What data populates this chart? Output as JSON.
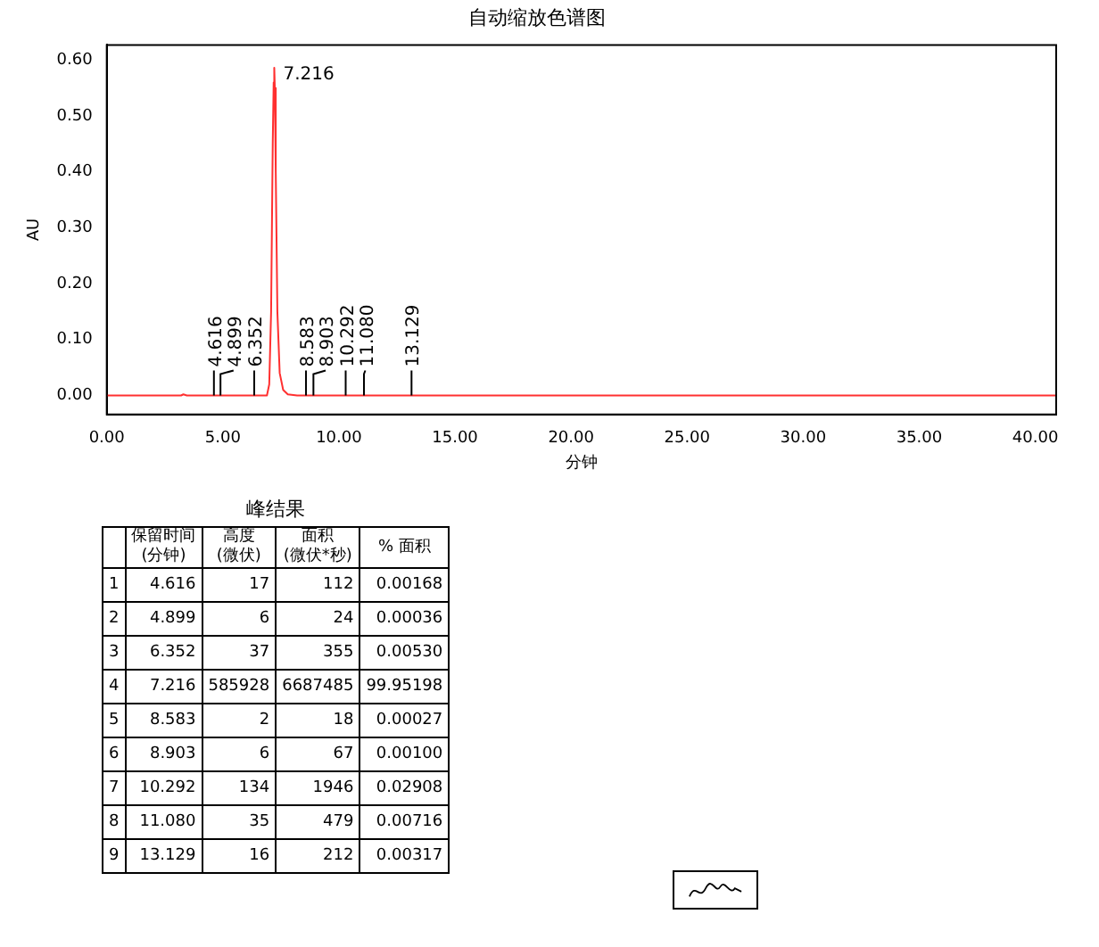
{
  "chart_data": {
    "type": "line",
    "title": "自动缩放色谱图",
    "xlabel": "分钟",
    "ylabel": "AU",
    "x": [
      0,
      3.2,
      3.3,
      3.45,
      6.9,
      7.0,
      7.08,
      7.15,
      7.19,
      7.216,
      7.24,
      7.28,
      7.35,
      7.45,
      7.6,
      7.8,
      8.2,
      40.9
    ],
    "series": [
      {
        "color": "#ff3030",
        "values": [
          0,
          0,
          0.002,
          0,
          0,
          0.02,
          0.15,
          0.45,
          0.56,
          0.586,
          0.55,
          0.4,
          0.15,
          0.04,
          0.01,
          0.002,
          0,
          0
        ]
      }
    ],
    "xlim": [
      0,
      40.9
    ],
    "ylim": [
      -0.034,
      0.627
    ],
    "xticks": [
      {
        "value": 0,
        "label": "0.00"
      },
      {
        "value": 5,
        "label": "5.00"
      },
      {
        "value": 10,
        "label": "10.00"
      },
      {
        "value": 15,
        "label": "15.00"
      },
      {
        "value": 20,
        "label": "20.00"
      },
      {
        "value": 25,
        "label": "25.00"
      },
      {
        "value": 30,
        "label": "30.00"
      },
      {
        "value": 35,
        "label": "35.00"
      },
      {
        "value": 40,
        "label": "40.00"
      }
    ],
    "yticks": [
      {
        "value": 0,
        "label": "0.00"
      },
      {
        "value": 0.1,
        "label": "0.10"
      },
      {
        "value": 0.2,
        "label": "0.20"
      },
      {
        "value": 0.3,
        "label": "0.30"
      },
      {
        "value": 0.4,
        "label": "0.40"
      },
      {
        "value": 0.5,
        "label": "0.50"
      },
      {
        "value": 0.6,
        "label": "0.60"
      }
    ],
    "grid": false,
    "legend": false,
    "marker": "none",
    "line_style": "solid",
    "annotations": [
      {
        "text": "4.616",
        "x": 4.616,
        "y": 0
      },
      {
        "text": "4.899",
        "x": 4.899,
        "y": 0
      },
      {
        "text": "6.352",
        "x": 6.352,
        "y": 0
      },
      {
        "text": "7.216",
        "x": 7.216,
        "y": 0.586
      },
      {
        "text": "8.583",
        "x": 8.583,
        "y": 0
      },
      {
        "text": "8.903",
        "x": 8.903,
        "y": 0
      },
      {
        "text": "10.292",
        "x": 10.292,
        "y": 0
      },
      {
        "text": "11.080",
        "x": 11.08,
        "y": 0
      },
      {
        "text": "13.129",
        "x": 13.129,
        "y": 0
      },
      "峰结果",
      "保留时间\n(分钟)",
      "高度\n(微伏)",
      "面积\n(微伏*秒)",
      "% 面积",
      "1",
      "4.616",
      "17",
      "112",
      "0.00168",
      "2",
      "4.899",
      "6",
      "24",
      "0.00036",
      "3",
      "6.352",
      "37",
      "355",
      "0.00530",
      "4",
      "7.216",
      "585928",
      "6687485",
      "99.95198",
      "5",
      "8.583",
      "2",
      "18",
      "0.00027",
      "6",
      "8.903",
      "6",
      "67",
      "0.00100",
      "7",
      "10.292",
      "134",
      "1946",
      "0.02908",
      "8",
      "11.080",
      "35",
      "479",
      "0.00716",
      "9",
      "13.129",
      "16",
      "212",
      "0.00317"
    ]
  }
}
